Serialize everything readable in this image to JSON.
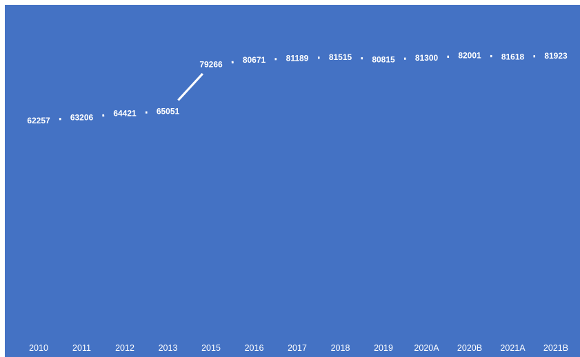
{
  "chart_data": {
    "type": "line",
    "title": "",
    "xlabel": "",
    "ylabel": "",
    "categories": [
      "2010",
      "2011",
      "2012",
      "2013",
      "2015",
      "2016",
      "2017",
      "2018",
      "2019",
      "2020A",
      "2020B",
      "2021A",
      "2021B"
    ],
    "series": [
      {
        "values": [
          62257,
          63206,
          64421,
          65051,
          79266,
          80671,
          81189,
          81515,
          80815,
          81300,
          82001,
          81618,
          81923
        ]
      }
    ],
    "data_labels": [
      "62257",
      "63206",
      "64421",
      "65051",
      "79266",
      "80671",
      "81189",
      "81515",
      "80815",
      "81300",
      "82001",
      "81618",
      "81923"
    ],
    "drop_lines": true,
    "grid": false,
    "legend": "none",
    "colors": {
      "background": "#4472c4",
      "line": "#ffffff",
      "text": "#ffffff"
    }
  }
}
